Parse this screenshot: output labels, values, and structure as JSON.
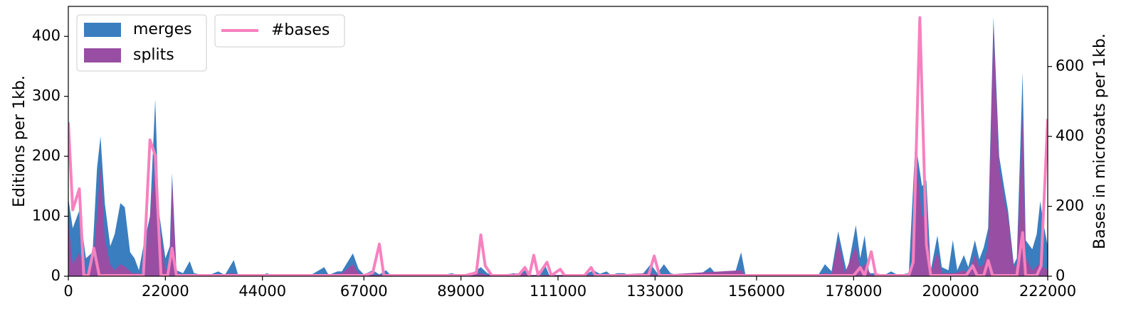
{
  "chart_data": {
    "type": "area",
    "xlabel": "",
    "ylabel_left": "Editions per 1kb.",
    "ylabel_right": "Bases in microsats per 1kb.",
    "xlim": [
      0,
      222000
    ],
    "ylim_left": [
      0,
      450
    ],
    "ylim_right": [
      0,
      772
    ],
    "x_ticks": [
      0,
      22000,
      44000,
      67000,
      89000,
      111000,
      133000,
      156000,
      178000,
      200000,
      222000
    ],
    "x_tick_labels": [
      "0",
      "22000",
      "44000",
      "67000",
      "89000",
      "111000",
      "133000",
      "156000",
      "178000",
      "200000",
      "222000"
    ],
    "y_ticks_left": [
      0,
      100,
      200,
      300,
      400
    ],
    "y_tick_labels_left": [
      "0",
      "100",
      "200",
      "300",
      "400"
    ],
    "y_ticks_right": [
      0,
      200,
      400,
      600
    ],
    "y_tick_labels_right": [
      "0",
      "200",
      "400",
      "600"
    ],
    "grid": false,
    "legend_left": {
      "placement": "top-left",
      "entries": [
        "merges",
        "splits"
      ]
    },
    "legend_right": {
      "placement": "top-left",
      "entries": [
        "#bases"
      ]
    },
    "series": [
      {
        "name": "merges",
        "kind": "area",
        "axis": "left",
        "color": "#3a7ebf",
        "points": [
          [
            0,
            130
          ],
          [
            1000,
            80
          ],
          [
            2500,
            110
          ],
          [
            4000,
            30
          ],
          [
            5500,
            40
          ],
          [
            6500,
            180
          ],
          [
            7300,
            233
          ],
          [
            8300,
            120
          ],
          [
            9500,
            50
          ],
          [
            10500,
            70
          ],
          [
            11800,
            122
          ],
          [
            12800,
            115
          ],
          [
            14000,
            40
          ],
          [
            15000,
            30
          ],
          [
            16000,
            10
          ],
          [
            17000,
            50
          ],
          [
            18500,
            100
          ],
          [
            19700,
            295
          ],
          [
            20500,
            110
          ],
          [
            22000,
            30
          ],
          [
            23000,
            50
          ],
          [
            23500,
            172
          ],
          [
            24500,
            10
          ],
          [
            26000,
            5
          ],
          [
            27500,
            25
          ],
          [
            28500,
            5
          ],
          [
            30000,
            3
          ],
          [
            32000,
            2
          ],
          [
            34000,
            8
          ],
          [
            35500,
            2
          ],
          [
            37500,
            27
          ],
          [
            38500,
            2
          ],
          [
            40000,
            2
          ],
          [
            44000,
            2
          ],
          [
            45000,
            5
          ],
          [
            46000,
            2
          ],
          [
            50000,
            2
          ],
          [
            55000,
            2
          ],
          [
            58000,
            15
          ],
          [
            59000,
            2
          ],
          [
            61000,
            8
          ],
          [
            62000,
            8
          ],
          [
            64500,
            38
          ],
          [
            65800,
            12
          ],
          [
            67000,
            3
          ],
          [
            69000,
            10
          ],
          [
            70500,
            3
          ],
          [
            72000,
            10
          ],
          [
            73000,
            2
          ],
          [
            76000,
            2
          ],
          [
            80000,
            2
          ],
          [
            85000,
            2
          ],
          [
            87000,
            5
          ],
          [
            88000,
            2
          ],
          [
            91000,
            2
          ],
          [
            93500,
            15
          ],
          [
            95000,
            5
          ],
          [
            96000,
            2
          ],
          [
            99000,
            2
          ],
          [
            101000,
            5
          ],
          [
            102000,
            2
          ],
          [
            103500,
            10
          ],
          [
            104500,
            2
          ],
          [
            106000,
            2
          ],
          [
            108000,
            20
          ],
          [
            109000,
            2
          ],
          [
            112000,
            2
          ],
          [
            115000,
            3
          ],
          [
            117000,
            2
          ],
          [
            119000,
            10
          ],
          [
            120500,
            4
          ],
          [
            122000,
            8
          ],
          [
            123000,
            2
          ],
          [
            124500,
            5
          ],
          [
            126000,
            5
          ],
          [
            127000,
            2
          ],
          [
            130000,
            2
          ],
          [
            132000,
            20
          ],
          [
            133500,
            5
          ],
          [
            135000,
            20
          ],
          [
            136500,
            5
          ],
          [
            138000,
            2
          ],
          [
            141000,
            2
          ],
          [
            143000,
            2
          ],
          [
            145500,
            15
          ],
          [
            147000,
            2
          ],
          [
            148500,
            5
          ],
          [
            150000,
            5
          ],
          [
            151000,
            2
          ],
          [
            152500,
            40
          ],
          [
            153500,
            2
          ],
          [
            160000,
            2
          ],
          [
            166000,
            2
          ],
          [
            170000,
            2
          ],
          [
            171500,
            20
          ],
          [
            173000,
            8
          ],
          [
            174500,
            75
          ],
          [
            176500,
            5
          ],
          [
            178500,
            85
          ],
          [
            179500,
            30
          ],
          [
            180500,
            68
          ],
          [
            181500,
            5
          ],
          [
            183000,
            5
          ],
          [
            185000,
            2
          ],
          [
            186500,
            8
          ],
          [
            188000,
            2
          ],
          [
            190500,
            5
          ],
          [
            192000,
            225
          ],
          [
            193500,
            150
          ],
          [
            194500,
            160
          ],
          [
            195500,
            10
          ],
          [
            197000,
            68
          ],
          [
            198000,
            15
          ],
          [
            199500,
            10
          ],
          [
            200500,
            60
          ],
          [
            201500,
            10
          ],
          [
            203000,
            35
          ],
          [
            204000,
            15
          ],
          [
            205500,
            60
          ],
          [
            206500,
            28
          ],
          [
            207500,
            48
          ],
          [
            208500,
            80
          ],
          [
            209700,
            432
          ],
          [
            211000,
            200
          ],
          [
            212300,
            140
          ],
          [
            213000,
            110
          ],
          [
            214300,
            20
          ],
          [
            215000,
            30
          ],
          [
            216300,
            340
          ],
          [
            217000,
            60
          ],
          [
            218500,
            45
          ],
          [
            219500,
            70
          ],
          [
            220300,
            125
          ],
          [
            221000,
            90
          ],
          [
            222000,
            50
          ]
        ]
      },
      {
        "name": "splits",
        "kind": "area",
        "axis": "left",
        "color": "#984ea3",
        "points": [
          [
            0,
            90
          ],
          [
            1000,
            20
          ],
          [
            2500,
            40
          ],
          [
            3800,
            2
          ],
          [
            5500,
            20
          ],
          [
            6500,
            100
          ],
          [
            7300,
            185
          ],
          [
            8300,
            60
          ],
          [
            9500,
            20
          ],
          [
            10500,
            10
          ],
          [
            11800,
            20
          ],
          [
            13000,
            15
          ],
          [
            14500,
            5
          ],
          [
            16000,
            5
          ],
          [
            17000,
            2
          ],
          [
            18500,
            100
          ],
          [
            19700,
            185
          ],
          [
            20700,
            80
          ],
          [
            22000,
            10
          ],
          [
            23000,
            20
          ],
          [
            23500,
            160
          ],
          [
            24500,
            5
          ],
          [
            26000,
            3
          ],
          [
            27500,
            2
          ],
          [
            29000,
            2
          ],
          [
            33000,
            2
          ],
          [
            37500,
            5
          ],
          [
            38500,
            2
          ],
          [
            44000,
            2
          ],
          [
            50000,
            2
          ],
          [
            58000,
            2
          ],
          [
            62000,
            5
          ],
          [
            64500,
            20
          ],
          [
            65800,
            5
          ],
          [
            67000,
            2
          ],
          [
            80000,
            2
          ],
          [
            91000,
            2
          ],
          [
            93500,
            5
          ],
          [
            95000,
            2
          ],
          [
            103500,
            5
          ],
          [
            104500,
            2
          ],
          [
            120000,
            2
          ],
          [
            132000,
            5
          ],
          [
            133500,
            2
          ],
          [
            152500,
            10
          ],
          [
            153500,
            2
          ],
          [
            170000,
            2
          ],
          [
            171500,
            5
          ],
          [
            173000,
            3
          ],
          [
            174500,
            60
          ],
          [
            176000,
            5
          ],
          [
            178500,
            50
          ],
          [
            179500,
            10
          ],
          [
            180500,
            20
          ],
          [
            182000,
            2
          ],
          [
            191000,
            2
          ],
          [
            192000,
            200
          ],
          [
            193500,
            100
          ],
          [
            194500,
            100
          ],
          [
            195500,
            5
          ],
          [
            197000,
            40
          ],
          [
            198000,
            5
          ],
          [
            201000,
            5
          ],
          [
            203000,
            10
          ],
          [
            204000,
            5
          ],
          [
            205500,
            35
          ],
          [
            206500,
            15
          ],
          [
            207500,
            20
          ],
          [
            208500,
            50
          ],
          [
            209700,
            420
          ],
          [
            211000,
            180
          ],
          [
            212300,
            120
          ],
          [
            213000,
            100
          ],
          [
            214300,
            15
          ],
          [
            215000,
            20
          ],
          [
            216300,
            270
          ],
          [
            217000,
            30
          ],
          [
            218500,
            10
          ],
          [
            220000,
            20
          ],
          [
            221000,
            15
          ],
          [
            222000,
            10
          ]
        ]
      },
      {
        "name": "#bases",
        "kind": "line",
        "axis": "right",
        "color": "#f781bf",
        "points": [
          [
            0,
            440
          ],
          [
            1000,
            190
          ],
          [
            2500,
            250
          ],
          [
            3500,
            2
          ],
          [
            4500,
            2
          ],
          [
            5800,
            80
          ],
          [
            7000,
            2
          ],
          [
            17000,
            2
          ],
          [
            18500,
            390
          ],
          [
            19700,
            345
          ],
          [
            21000,
            2
          ],
          [
            22500,
            2
          ],
          [
            23500,
            80
          ],
          [
            24500,
            2
          ],
          [
            27000,
            2
          ],
          [
            30000,
            2
          ],
          [
            37000,
            2
          ],
          [
            67000,
            2
          ],
          [
            69000,
            10
          ],
          [
            70500,
            92
          ],
          [
            71500,
            2
          ],
          [
            90000,
            2
          ],
          [
            92500,
            10
          ],
          [
            93500,
            118
          ],
          [
            94500,
            30
          ],
          [
            96000,
            2
          ],
          [
            102000,
            2
          ],
          [
            103500,
            25
          ],
          [
            104500,
            2
          ],
          [
            105500,
            60
          ],
          [
            106500,
            2
          ],
          [
            108500,
            40
          ],
          [
            109500,
            2
          ],
          [
            111500,
            20
          ],
          [
            112500,
            2
          ],
          [
            117000,
            2
          ],
          [
            118500,
            25
          ],
          [
            119500,
            2
          ],
          [
            131500,
            2
          ],
          [
            132800,
            58
          ],
          [
            134000,
            2
          ],
          [
            178000,
            2
          ],
          [
            179500,
            25
          ],
          [
            180500,
            2
          ],
          [
            182000,
            70
          ],
          [
            183000,
            5
          ],
          [
            184000,
            2
          ],
          [
            190500,
            2
          ],
          [
            191500,
            40
          ],
          [
            193000,
            740
          ],
          [
            194500,
            90
          ],
          [
            195500,
            2
          ],
          [
            203500,
            2
          ],
          [
            205000,
            30
          ],
          [
            206000,
            2
          ],
          [
            207500,
            2
          ],
          [
            208500,
            45
          ],
          [
            209500,
            2
          ],
          [
            215000,
            2
          ],
          [
            216300,
            125
          ],
          [
            217000,
            2
          ],
          [
            219500,
            2
          ],
          [
            220500,
            30
          ],
          [
            222000,
            450
          ]
        ]
      }
    ]
  }
}
